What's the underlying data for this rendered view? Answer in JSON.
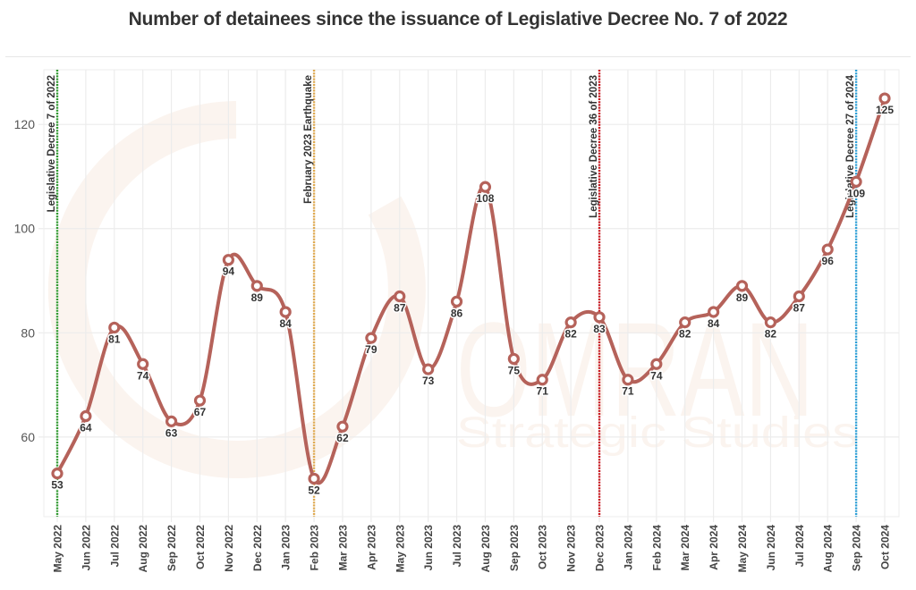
{
  "chart_data": {
    "type": "line",
    "title": "Number of detainees since the issuance of Legislative Decree No. 7 of 2022",
    "xlabel": "",
    "ylabel": "",
    "ylim": [
      44.7,
      130.5
    ],
    "yticks": [
      60,
      80,
      100,
      120
    ],
    "grid": true,
    "categories": [
      "May 2022",
      "Jun 2022",
      "Jul 2022",
      "Aug 2022",
      "Sep 2022",
      "Oct 2022",
      "Nov 2022",
      "Dec 2022",
      "Jan 2023",
      "Feb 2023",
      "Mar 2023",
      "Apr 2023",
      "May 2023",
      "Jun 2023",
      "Jul 2023",
      "Aug 2023",
      "Sep 2023",
      "Oct 2023",
      "Nov 2023",
      "Dec 2023",
      "Jan 2024",
      "Feb 2024",
      "Mar 2024",
      "Apr 2024",
      "May 2024",
      "Jun 2024",
      "Jul 2024",
      "Aug 2024",
      "Sep 2024",
      "Oct 2024"
    ],
    "series": [
      {
        "name": "Detainees",
        "color": "#b5625a",
        "values": [
          53,
          64,
          81,
          74,
          63,
          67,
          94,
          89,
          84,
          52,
          62,
          79,
          87,
          73,
          86,
          108,
          75,
          71,
          82,
          83,
          71,
          74,
          82,
          84,
          89,
          82,
          87,
          96,
          109,
          125
        ]
      }
    ],
    "annotations": [
      {
        "label": "Legislative Decree 7 of 2022",
        "x": "May 2022",
        "color": "#2e9a2e"
      },
      {
        "label": "February 2023 Earthquake",
        "x": "Feb 2023",
        "color": "#e0a94e"
      },
      {
        "label": "Legislative Decree 36 of 2023",
        "x": "Dec 2023",
        "color": "#c8171e"
      },
      {
        "label": "Legislative Decree 27 of 2024",
        "x": "Sep 2024",
        "color": "#2a9fd8"
      }
    ],
    "watermark": {
      "lines": [
        "OMRAN",
        "Strategic Studies"
      ],
      "color": "#fbf4ef"
    }
  }
}
